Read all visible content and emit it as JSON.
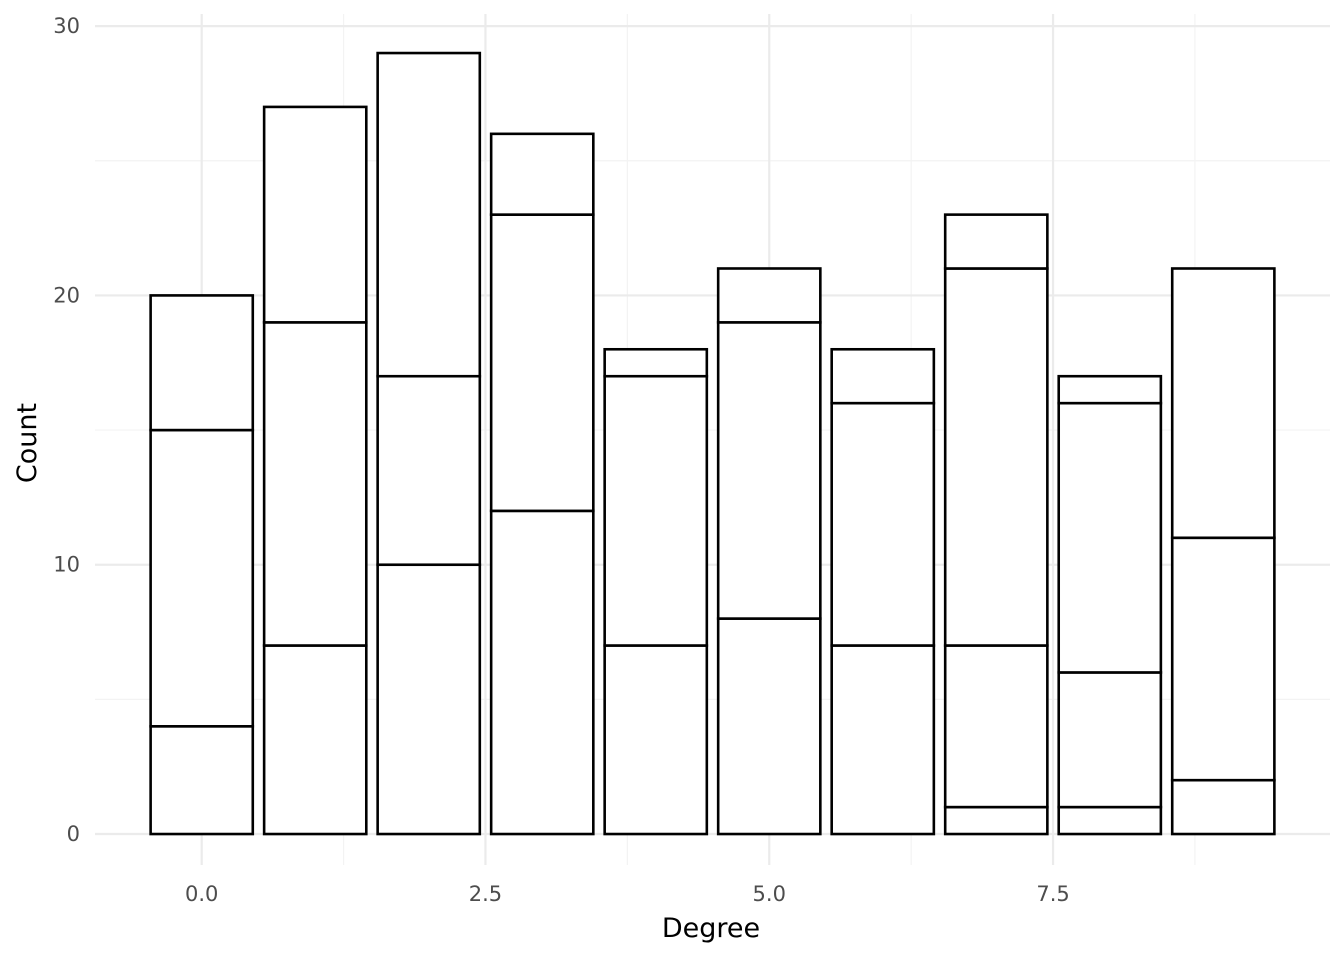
{
  "chart_data": {
    "type": "bar",
    "stacked": true,
    "title": "",
    "xlabel": "Degree",
    "ylabel": "Count",
    "x": [
      0,
      1,
      2,
      3,
      4,
      5,
      6,
      7,
      8,
      9
    ],
    "series": [
      {
        "values": [
          4,
          7,
          10,
          12,
          7,
          8,
          7,
          1,
          1,
          2
        ]
      },
      {
        "values": [
          11,
          12,
          7,
          11,
          10,
          11,
          9,
          6,
          5,
          9
        ]
      },
      {
        "values": [
          5,
          8,
          12,
          3,
          1,
          2,
          2,
          14,
          10,
          10
        ]
      },
      {
        "values": [
          0,
          0,
          0,
          0,
          0,
          0,
          0,
          2,
          1,
          0
        ]
      }
    ],
    "totals": [
      20,
      27,
      29,
      26,
      18,
      21,
      18,
      23,
      17,
      21
    ],
    "x_ticks": [
      "0.0",
      "2.5",
      "5.0",
      "7.5"
    ],
    "x_tick_values": [
      0,
      2.5,
      5,
      7.5
    ],
    "y_ticks": [
      "0",
      "10",
      "20",
      "30"
    ],
    "y_tick_values": [
      0,
      10,
      20,
      30
    ],
    "xlim": [
      -0.94,
      9.94
    ],
    "ylim": [
      -1.15,
      30.45
    ],
    "bar_width": 0.9,
    "grid": true,
    "legend": "none",
    "bar_fill": "#ffffff",
    "bar_stroke": "#000000"
  }
}
